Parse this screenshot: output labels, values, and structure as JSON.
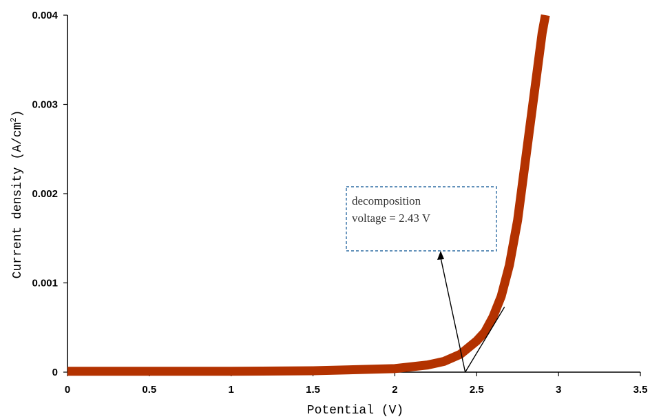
{
  "chart_data": {
    "type": "line",
    "title": "",
    "xlabel": "Potential  (V)",
    "ylabel": "Current density (A/cm",
    "ylabel_sup": "2",
    "ylabel_close": ")",
    "xlim": [
      0,
      3.5
    ],
    "ylim": [
      0,
      0.004
    ],
    "x_ticks": [
      "0",
      "0.5",
      "1",
      "1.5",
      "2",
      "2.5",
      "3",
      "3.5"
    ],
    "x_tick_values": [
      0,
      0.5,
      1,
      1.5,
      2,
      2.5,
      3,
      3.5
    ],
    "y_ticks": [
      "0",
      "0.001",
      "0.002",
      "0.003",
      "0.004"
    ],
    "y_tick_values": [
      0,
      0.001,
      0.002,
      0.003,
      0.004
    ],
    "grid": false,
    "legend": "none",
    "series": [
      {
        "color": "#b33200",
        "x": [
          0,
          0.5,
          1,
          1.5,
          2,
          2.2,
          2.3,
          2.4,
          2.5,
          2.55,
          2.6,
          2.65,
          2.7,
          2.75,
          2.8,
          2.85,
          2.9,
          2.92
        ],
        "y": [
          1e-05,
          1e-05,
          1e-05,
          1.5e-05,
          4e-05,
          8e-05,
          0.00012,
          0.0002,
          0.00035,
          0.00045,
          0.00062,
          0.00085,
          0.0012,
          0.0017,
          0.0024,
          0.0031,
          0.0038,
          0.004
        ]
      }
    ],
    "tangent_line": {
      "x": [
        2.43,
        2.67
      ],
      "y": [
        0,
        0.00073
      ]
    },
    "annotation": {
      "lines": [
        "decomposition",
        "voltage = 2.43 V"
      ],
      "box_color": "#2e6da4",
      "arrow_target_x": 2.43,
      "arrow_target_y": 0
    }
  }
}
